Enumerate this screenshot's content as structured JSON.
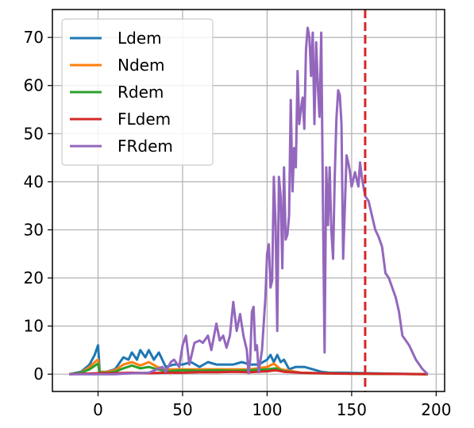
{
  "chart_data": {
    "type": "line",
    "title": "",
    "xlabel": "",
    "ylabel": "",
    "xlim": [
      -27,
      205
    ],
    "ylim": [
      -3.6,
      75.8
    ],
    "xticks": [
      0,
      50,
      100,
      150,
      200
    ],
    "yticks": [
      0,
      10,
      20,
      30,
      40,
      50,
      60,
      70
    ],
    "grid": true,
    "legend_position": "upper-left",
    "vline": {
      "x": 158,
      "color": "#d62728",
      "style": "dashed"
    },
    "series": [
      {
        "name": "Ldem",
        "color": "#1f77b4",
        "points": [
          [
            -17,
            0
          ],
          [
            -10,
            0.5
          ],
          [
            -5,
            2
          ],
          [
            -2,
            4
          ],
          [
            0,
            6
          ],
          [
            1,
            0.5
          ],
          [
            5,
            0.5
          ],
          [
            10,
            1
          ],
          [
            15,
            3.5
          ],
          [
            18,
            3
          ],
          [
            20,
            4.5
          ],
          [
            23,
            3
          ],
          [
            25,
            5
          ],
          [
            28,
            3.5
          ],
          [
            30,
            5
          ],
          [
            33,
            3
          ],
          [
            36,
            4.5
          ],
          [
            40,
            1.5
          ],
          [
            45,
            2
          ],
          [
            50,
            2
          ],
          [
            55,
            2.5
          ],
          [
            60,
            1.5
          ],
          [
            65,
            2.5
          ],
          [
            70,
            2
          ],
          [
            75,
            2
          ],
          [
            80,
            2
          ],
          [
            85,
            2.5
          ],
          [
            90,
            2
          ],
          [
            95,
            2
          ],
          [
            100,
            3
          ],
          [
            102,
            4
          ],
          [
            104,
            2.5
          ],
          [
            106,
            4
          ],
          [
            108,
            2.5
          ],
          [
            110,
            3
          ],
          [
            113,
            1
          ],
          [
            117,
            1.5
          ],
          [
            122,
            1.5
          ],
          [
            127,
            1
          ],
          [
            132,
            0.5
          ],
          [
            137,
            0.3
          ],
          [
            145,
            0.3
          ],
          [
            160,
            0.2
          ],
          [
            175,
            0.1
          ],
          [
            195,
            0
          ]
        ]
      },
      {
        "name": "Ndem",
        "color": "#ff7f0e",
        "points": [
          [
            -17,
            0
          ],
          [
            -10,
            0.3
          ],
          [
            -5,
            1.5
          ],
          [
            -1,
            2.8
          ],
          [
            0,
            3
          ],
          [
            1,
            0.4
          ],
          [
            5,
            0.5
          ],
          [
            10,
            0.8
          ],
          [
            15,
            2
          ],
          [
            20,
            2.5
          ],
          [
            25,
            1.8
          ],
          [
            30,
            2.5
          ],
          [
            35,
            1.5
          ],
          [
            40,
            1
          ],
          [
            50,
            1
          ],
          [
            60,
            1
          ],
          [
            70,
            1
          ],
          [
            80,
            1
          ],
          [
            90,
            1
          ],
          [
            100,
            1.5
          ],
          [
            104,
            2.2
          ],
          [
            108,
            1
          ],
          [
            112,
            0.8
          ],
          [
            120,
            0.3
          ],
          [
            130,
            0.2
          ],
          [
            150,
            0.1
          ],
          [
            195,
            0
          ]
        ]
      },
      {
        "name": "Rdem",
        "color": "#2ca02c",
        "points": [
          [
            -17,
            0
          ],
          [
            -10,
            0.3
          ],
          [
            -5,
            1
          ],
          [
            -1,
            2
          ],
          [
            0,
            2.2
          ],
          [
            1,
            0.3
          ],
          [
            5,
            0.3
          ],
          [
            10,
            0.5
          ],
          [
            15,
            1.2
          ],
          [
            20,
            1.8
          ],
          [
            25,
            1.2
          ],
          [
            30,
            1.5
          ],
          [
            35,
            1
          ],
          [
            40,
            0.6
          ],
          [
            50,
            0.8
          ],
          [
            60,
            0.7
          ],
          [
            70,
            0.8
          ],
          [
            80,
            0.7
          ],
          [
            90,
            0.8
          ],
          [
            100,
            1
          ],
          [
            105,
            1.2
          ],
          [
            110,
            0.6
          ],
          [
            120,
            0.3
          ],
          [
            130,
            0.2
          ],
          [
            150,
            0.1
          ],
          [
            195,
            0
          ]
        ]
      },
      {
        "name": "FLdem",
        "color": "#d62728",
        "points": [
          [
            -17,
            0
          ],
          [
            0,
            0.2
          ],
          [
            10,
            0.2
          ],
          [
            20,
            0.3
          ],
          [
            30,
            0.2
          ],
          [
            40,
            0.3
          ],
          [
            50,
            0.3
          ],
          [
            60,
            0.4
          ],
          [
            70,
            0.4
          ],
          [
            80,
            0.5
          ],
          [
            90,
            0.4
          ],
          [
            100,
            0.6
          ],
          [
            105,
            0.8
          ],
          [
            110,
            0.5
          ],
          [
            120,
            0.3
          ],
          [
            130,
            0.2
          ],
          [
            145,
            0.1
          ],
          [
            160,
            0.1
          ],
          [
            195,
            0
          ]
        ]
      },
      {
        "name": "FRdem",
        "color": "#9467bd",
        "points": [
          [
            -17,
            0
          ],
          [
            0,
            0
          ],
          [
            5,
            0
          ],
          [
            10,
            0
          ],
          [
            20,
            0.2
          ],
          [
            30,
            0.3
          ],
          [
            35,
            1
          ],
          [
            38,
            1.5
          ],
          [
            40,
            0.5
          ],
          [
            43,
            2.5
          ],
          [
            45,
            3
          ],
          [
            48,
            1.5
          ],
          [
            50,
            6
          ],
          [
            52,
            8
          ],
          [
            54,
            2
          ],
          [
            57,
            6.5
          ],
          [
            60,
            7
          ],
          [
            62,
            6.5
          ],
          [
            65,
            8
          ],
          [
            67,
            5
          ],
          [
            70,
            10.5
          ],
          [
            72,
            7
          ],
          [
            74,
            8
          ],
          [
            76,
            5.5
          ],
          [
            78,
            8
          ],
          [
            80,
            15
          ],
          [
            82,
            9
          ],
          [
            84,
            12.5
          ],
          [
            86,
            8
          ],
          [
            88,
            5
          ],
          [
            89,
            0.2
          ],
          [
            90,
            3
          ],
          [
            91,
            13
          ],
          [
            92,
            14
          ],
          [
            93,
            5
          ],
          [
            94,
            6
          ],
          [
            95,
            0.4
          ],
          [
            97,
            5
          ],
          [
            99,
            16
          ],
          [
            100,
            25
          ],
          [
            101,
            27
          ],
          [
            102,
            18
          ],
          [
            103,
            19.5
          ],
          [
            104,
            41
          ],
          [
            105,
            31
          ],
          [
            106,
            9
          ],
          [
            107,
            41
          ],
          [
            108,
            37
          ],
          [
            109,
            22
          ],
          [
            110,
            43
          ],
          [
            111,
            28
          ],
          [
            112,
            29
          ],
          [
            113,
            33
          ],
          [
            114,
            57
          ],
          [
            115,
            38
          ],
          [
            116,
            47
          ],
          [
            117,
            43
          ],
          [
            118,
            63
          ],
          [
            119,
            52
          ],
          [
            120,
            55
          ],
          [
            121,
            57.5
          ],
          [
            122,
            51
          ],
          [
            123,
            67.5
          ],
          [
            124,
            72
          ],
          [
            125,
            70
          ],
          [
            126,
            62
          ],
          [
            127,
            71
          ],
          [
            128,
            52
          ],
          [
            129,
            69
          ],
          [
            130,
            60
          ],
          [
            131,
            53.5
          ],
          [
            132,
            71
          ],
          [
            133,
            36
          ],
          [
            134,
            4.5
          ],
          [
            135,
            43
          ],
          [
            136,
            31
          ],
          [
            137,
            43
          ],
          [
            138,
            30
          ],
          [
            139,
            24
          ],
          [
            140,
            41
          ],
          [
            141,
            53
          ],
          [
            142,
            59
          ],
          [
            143,
            58
          ],
          [
            144,
            52
          ],
          [
            145,
            24
          ],
          [
            146,
            35
          ],
          [
            147,
            45.5
          ],
          [
            148,
            44
          ],
          [
            149,
            42
          ],
          [
            150,
            39
          ],
          [
            152,
            42
          ],
          [
            154,
            39
          ],
          [
            155,
            44
          ],
          [
            156,
            41
          ],
          [
            158,
            37
          ],
          [
            160,
            36
          ],
          [
            162,
            33
          ],
          [
            164,
            30
          ],
          [
            166,
            28.5
          ],
          [
            168,
            26.5
          ],
          [
            170,
            21
          ],
          [
            172,
            20
          ],
          [
            174,
            18
          ],
          [
            176,
            16
          ],
          [
            178,
            13
          ],
          [
            180,
            8
          ],
          [
            184,
            6
          ],
          [
            188,
            3
          ],
          [
            192,
            1
          ],
          [
            195,
            0
          ]
        ]
      }
    ]
  }
}
